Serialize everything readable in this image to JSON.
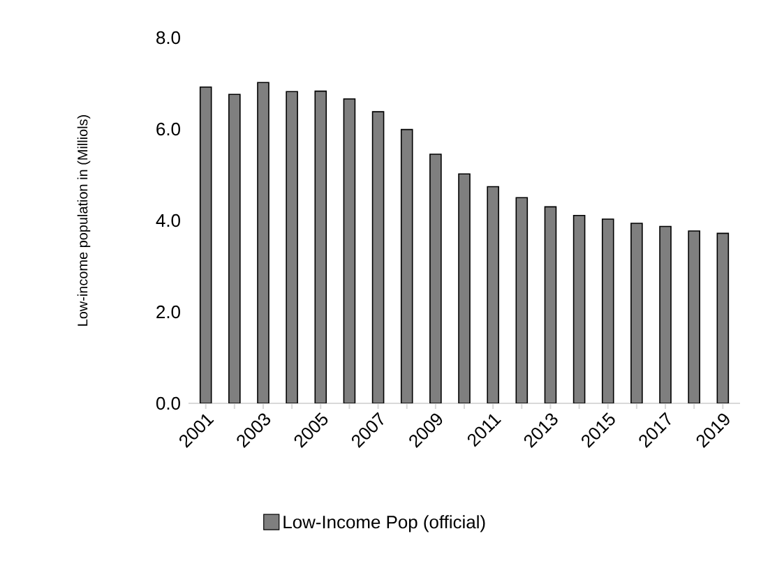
{
  "chart_data": {
    "type": "bar",
    "ylabel": "Low-income population in (Milliols)",
    "categories": [
      "2001",
      null,
      "2003",
      null,
      "2005",
      null,
      "2007",
      null,
      "2009",
      null,
      "2011",
      null,
      "2013",
      null,
      "2015",
      null,
      "2017",
      null,
      "2019"
    ],
    "series": [
      {
        "name": "Low-Income Pop (official)",
        "color": "#7f7f7f",
        "values": [
          6.92,
          6.76,
          7.02,
          6.82,
          6.83,
          6.66,
          6.38,
          5.99,
          5.45,
          5.02,
          4.74,
          4.5,
          4.3,
          4.11,
          4.03,
          3.94,
          3.87,
          3.77,
          3.72
        ]
      }
    ],
    "ylim": [
      0,
      8
    ],
    "yticks": [
      {
        "value": 0,
        "label": "0.0"
      },
      {
        "value": 2,
        "label": "2.0"
      },
      {
        "value": 4,
        "label": "4.0"
      },
      {
        "value": 6,
        "label": "6.0"
      },
      {
        "value": 8,
        "label": "8.0"
      }
    ],
    "legend": "bottom",
    "grid": false
  }
}
